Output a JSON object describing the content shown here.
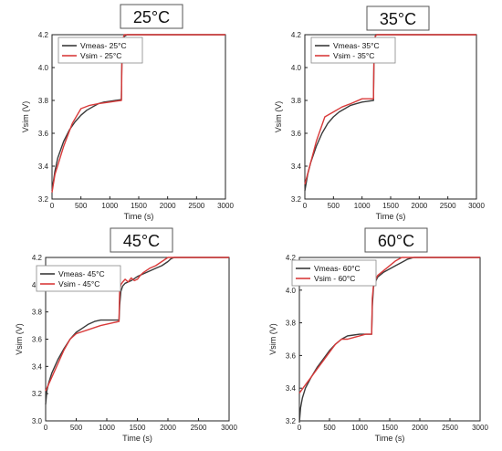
{
  "chart_data": [
    {
      "type": "line",
      "title": "25°C",
      "xlabel": "Time (s)",
      "ylabel": "Vsim (V)",
      "xlim": [
        0,
        3000
      ],
      "ylim": [
        3.2,
        4.2
      ],
      "xticks": [
        "0",
        "500",
        "1000",
        "1500",
        "2000",
        "2500",
        "3000"
      ],
      "yticks": [
        "3.2",
        "3.4",
        "3.6",
        "3.8",
        "4.0",
        "4.2"
      ],
      "legend_position": "top-left",
      "series": [
        {
          "name": "Vmeas- 25°C",
          "color": "#3a3a3a",
          "x": [
            0,
            50,
            100,
            200,
            300,
            400,
            500,
            600,
            700,
            800,
            900,
            1000,
            1100,
            1200,
            1205,
            1210,
            1220,
            1230,
            1250,
            1300,
            1400,
            1600,
            2000,
            3000
          ],
          "y": [
            3.25,
            3.37,
            3.45,
            3.55,
            3.62,
            3.67,
            3.71,
            3.74,
            3.76,
            3.78,
            3.79,
            3.795,
            3.8,
            3.805,
            3.95,
            4.05,
            4.12,
            4.16,
            4.19,
            4.2,
            4.2,
            4.2,
            4.2,
            4.2
          ]
        },
        {
          "name": "Vsim - 25°C",
          "color": "#d93a3a",
          "x": [
            0,
            50,
            200,
            350,
            500,
            650,
            800,
            1000,
            1200,
            1205,
            1210,
            1230,
            1250,
            1300,
            1600,
            2000,
            3000
          ],
          "y": [
            3.24,
            3.35,
            3.52,
            3.66,
            3.75,
            3.77,
            3.78,
            3.79,
            3.8,
            3.9,
            4.05,
            4.18,
            4.2,
            4.2,
            4.2,
            4.2,
            4.2
          ]
        }
      ]
    },
    {
      "type": "line",
      "title": "35°C",
      "xlabel": "Time (s)",
      "ylabel": "Vsim (V)",
      "xlim": [
        0,
        3000
      ],
      "ylim": [
        3.2,
        4.2
      ],
      "xticks": [
        "0",
        "500",
        "1000",
        "1500",
        "2000",
        "2500",
        "3000"
      ],
      "yticks": [
        "3.2",
        "3.4",
        "3.6",
        "3.8",
        "4.0",
        "4.2"
      ],
      "legend_position": "top-left",
      "series": [
        {
          "name": "Vmeas- 35°C",
          "color": "#3a3a3a",
          "x": [
            0,
            50,
            100,
            200,
            300,
            400,
            500,
            600,
            700,
            800,
            900,
            1000,
            1100,
            1200,
            1205,
            1210,
            1220,
            1240,
            1300,
            1500,
            3000
          ],
          "y": [
            3.25,
            3.35,
            3.42,
            3.52,
            3.6,
            3.66,
            3.7,
            3.73,
            3.75,
            3.77,
            3.78,
            3.79,
            3.795,
            3.8,
            3.95,
            4.1,
            4.17,
            4.2,
            4.2,
            4.2,
            4.2
          ]
        },
        {
          "name": "Vsim - 35°C",
          "color": "#d93a3a",
          "x": [
            0,
            100,
            200,
            350,
            500,
            650,
            800,
            1000,
            1200,
            1205,
            1210,
            1230,
            1260,
            1500,
            3000
          ],
          "y": [
            3.29,
            3.42,
            3.55,
            3.7,
            3.73,
            3.76,
            3.78,
            3.81,
            3.81,
            3.95,
            4.1,
            4.19,
            4.2,
            4.2,
            4.2
          ]
        }
      ]
    },
    {
      "type": "line",
      "title": "45°C",
      "xlabel": "Time (s)",
      "ylabel": "Vsim (V)",
      "xlim": [
        0,
        3000
      ],
      "ylim": [
        3.0,
        4.2
      ],
      "xticks": [
        "0",
        "500",
        "1000",
        "1500",
        "2000",
        "2500",
        "3000"
      ],
      "yticks": [
        "3.0",
        "3.2",
        "3.4",
        "3.6",
        "3.8",
        "4.0",
        "4.2"
      ],
      "legend_position": "top-left",
      "series": [
        {
          "name": "Vmeas- 45°C",
          "color": "#3a3a3a",
          "x": [
            0,
            20,
            50,
            100,
            200,
            300,
            400,
            500,
            600,
            700,
            800,
            900,
            1000,
            1100,
            1200,
            1210,
            1230,
            1260,
            1300,
            1400,
            1500,
            1600,
            1700,
            1800,
            1900,
            2000,
            2050,
            2100,
            3000
          ],
          "y": [
            3.12,
            3.22,
            3.28,
            3.35,
            3.45,
            3.53,
            3.6,
            3.65,
            3.68,
            3.71,
            3.73,
            3.74,
            3.74,
            3.74,
            3.74,
            3.85,
            3.95,
            3.99,
            4.01,
            4.03,
            4.06,
            4.08,
            4.1,
            4.12,
            4.14,
            4.17,
            4.19,
            4.2,
            4.2
          ]
        },
        {
          "name": "Vsim - 45°C",
          "color": "#d93a3a",
          "x": [
            0,
            100,
            200,
            300,
            400,
            500,
            700,
            900,
            1100,
            1200,
            1205,
            1210,
            1230,
            1260,
            1300,
            1350,
            1400,
            1450,
            1500,
            1550,
            1600,
            1700,
            1800,
            1900,
            2000,
            2100,
            3000
          ],
          "y": [
            3.22,
            3.32,
            3.42,
            3.52,
            3.6,
            3.64,
            3.67,
            3.7,
            3.72,
            3.73,
            3.85,
            3.95,
            4.0,
            4.02,
            4.04,
            4.02,
            4.05,
            4.03,
            4.04,
            4.07,
            4.09,
            4.12,
            4.14,
            4.17,
            4.2,
            4.2,
            4.2
          ]
        }
      ]
    },
    {
      "type": "line",
      "title": "60°C",
      "xlabel": "Time (s)",
      "ylabel": "Vsim (V)",
      "xlim": [
        0,
        3000
      ],
      "ylim": [
        3.2,
        4.2
      ],
      "xticks": [
        "0",
        "500",
        "1000",
        "1500",
        "2000",
        "2500",
        "3000"
      ],
      "yticks": [
        "3.2",
        "3.4",
        "3.6",
        "3.8",
        "4.0",
        "4.2"
      ],
      "legend_position": "top-left",
      "series": [
        {
          "name": "Vmeas- 60°C",
          "color": "#3a3a3a",
          "x": [
            0,
            20,
            50,
            100,
            200,
            300,
            400,
            500,
            600,
            700,
            800,
            900,
            1000,
            1100,
            1200,
            1210,
            1230,
            1260,
            1300,
            1400,
            1500,
            1600,
            1700,
            1800,
            1900,
            3000
          ],
          "y": [
            3.19,
            3.28,
            3.34,
            3.4,
            3.47,
            3.53,
            3.58,
            3.63,
            3.67,
            3.7,
            3.72,
            3.725,
            3.73,
            3.73,
            3.73,
            3.9,
            4.02,
            4.05,
            4.08,
            4.11,
            4.13,
            4.15,
            4.17,
            4.19,
            4.2,
            4.2
          ]
        },
        {
          "name": "Vsim - 60°C",
          "color": "#d93a3a",
          "x": [
            0,
            100,
            200,
            300,
            400,
            500,
            600,
            700,
            800,
            900,
            1000,
            1100,
            1200,
            1210,
            1230,
            1260,
            1300,
            1400,
            1500,
            1600,
            1700,
            3000
          ],
          "y": [
            3.37,
            3.42,
            3.47,
            3.52,
            3.57,
            3.62,
            3.67,
            3.7,
            3.7,
            3.71,
            3.72,
            3.73,
            3.73,
            3.95,
            4.03,
            4.06,
            4.09,
            4.12,
            4.15,
            4.18,
            4.2,
            4.2
          ]
        }
      ]
    }
  ]
}
